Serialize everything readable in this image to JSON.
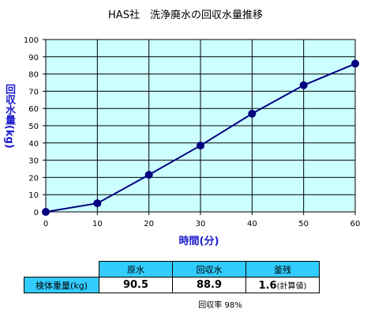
{
  "title": "HAS社　洗浄廃水の回収水量推移",
  "chart_data": {
    "type": "line",
    "title": "HAS社　洗浄廃水の回収水量推移",
    "xlabel": "時間(分)",
    "ylabel": "回収水量(kg)",
    "x": [
      0,
      10,
      20,
      30,
      40,
      50,
      60
    ],
    "series": [
      {
        "values": [
          0,
          5,
          21.5,
          38.5,
          57,
          73.5,
          86
        ]
      }
    ],
    "xlim": [
      0,
      60
    ],
    "ylim": [
      0,
      100
    ],
    "xticks": [
      "0",
      "10",
      "20",
      "30",
      "40",
      "50",
      "60"
    ],
    "yticks": [
      "0",
      "10",
      "20",
      "30",
      "40",
      "50",
      "60",
      "70",
      "80",
      "90",
      "100"
    ],
    "grid": true,
    "colors": {
      "plot_bg": "#ccffff",
      "line": "#000080",
      "marker": "#000080"
    }
  },
  "table": {
    "headers": [
      "原水",
      "回収水",
      "釜残"
    ],
    "row_label": "検体重量(kg)",
    "values": [
      "90.5",
      "88.9",
      "1.6"
    ],
    "note": "(計算値)"
  },
  "recovery_text": "回収率 98%"
}
